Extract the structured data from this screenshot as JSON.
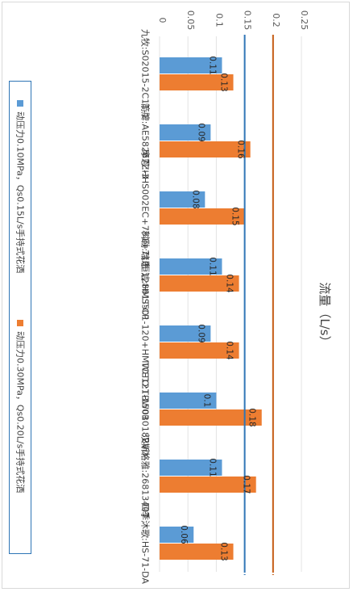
{
  "chart_data": {
    "type": "bar",
    "orientation": "horizontal",
    "title": "流量（L/s）",
    "categories": [
      "九牧:S02015-2C11-1",
      "箭牌:AE58267Z-3",
      "摩恩:HHS002EC+731+710",
      "科勒:瑞思 12861T-CP",
      "恒洁:HMS501-120+HMWE121-150B",
      "TOTO:TBW01018BVD",
      "汉斯格雅:26813407",
      "四季沐歌:HS-71-DA"
    ],
    "series": [
      {
        "name": "动压力0.10MPa，Qs0.15L/s手持式花洒",
        "values": [
          0.11,
          0.09,
          0.08,
          0.11,
          0.09,
          0.1,
          0.11,
          0.06
        ],
        "color": "#5b9bd5"
      },
      {
        "name": "动压力0.30MPa，Qs0.20L/s手持式花洒",
        "values": [
          0.13,
          0.16,
          0.15,
          0.14,
          0.14,
          0.18,
          0.17,
          0.13
        ],
        "color": "#ed7d31"
      }
    ],
    "data_labels": [
      [
        "0.11",
        "0.09",
        "0.08",
        "0.11",
        "0.09",
        "0.1",
        "0.11",
        "0.06"
      ],
      [
        "0.13",
        "0.16",
        "0.15",
        "0.14",
        "0.14",
        "0.18",
        "0.17",
        "0.13"
      ]
    ],
    "reference_lines": [
      {
        "value": 0.15,
        "color": "#2e75b6"
      },
      {
        "value": 0.2,
        "color": "#c55a11"
      }
    ],
    "axis_ticks": [
      "0",
      "0.05",
      "0.1",
      "0.15",
      "0.2",
      "0.25"
    ],
    "xlim": [
      0,
      0.25
    ],
    "grid": true,
    "legend_position": "bottom",
    "text_rotation": "90deg clockwise"
  }
}
